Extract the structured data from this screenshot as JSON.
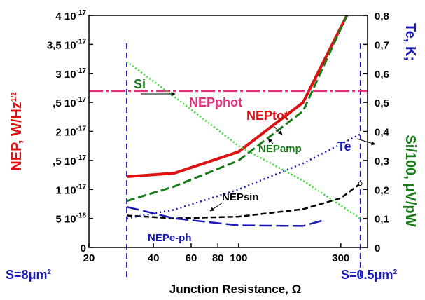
{
  "chart_data": {
    "type": "line",
    "xlabel": "Junction Resistance, Ω",
    "xscale": "log",
    "xlim": [
      20,
      400
    ],
    "x_ticks": [
      {
        "v": 20,
        "label": "20"
      },
      {
        "v": 40,
        "label": "40"
      },
      {
        "v": 60,
        "label": "60"
      },
      {
        "v": 80,
        "label": "80"
      },
      {
        "v": 100,
        "label": "100"
      },
      {
        "v": 300,
        "label": "300"
      }
    ],
    "ylabel_left_text": "NEP, W/Hz",
    "ylabel_left_sup": "1/2",
    "ylim_left": [
      0,
      4e-17
    ],
    "left_ticks": [
      {
        "v": 0,
        "m": "0",
        "e": ""
      },
      {
        "v": 5e-18,
        "m": "5 10",
        "e": "-18"
      },
      {
        "v": 1e-17,
        "m": "1 10",
        "e": "-17"
      },
      {
        "v": 1.5e-17,
        "m": ",5 10",
        "e": "-17"
      },
      {
        "v": 2e-17,
        "m": "2 10",
        "e": "-17"
      },
      {
        "v": 2.5e-17,
        "m": ",5 10",
        "e": "-17"
      },
      {
        "v": 3e-17,
        "m": "3 10",
        "e": "-17"
      },
      {
        "v": 3.5e-17,
        "m": "3,5 10",
        "e": "-17"
      },
      {
        "v": 4e-17,
        "m": "4 10",
        "e": "-17"
      }
    ],
    "ylabel_right_1": "Te, K;",
    "ylabel_right_2": "Si/100, μV/pW",
    "ylim_right": [
      0,
      0.8
    ],
    "right_ticks": [
      "0",
      "0,1",
      "0,2",
      "0,3",
      "0,4",
      "0,5",
      "0,6",
      "0,7",
      "0,8"
    ],
    "colors": {
      "red": "#dd1111",
      "green": "#1a7a1a",
      "lime": "#33dd33",
      "blue": "#1a1ab4",
      "magenta": "#e0307a",
      "black": "#000000"
    },
    "series": [
      {
        "name": "NEPtot",
        "axis": "left",
        "color": "#dd1111",
        "dash": "",
        "width": 4,
        "x": [
          30,
          50,
          100,
          200,
          320
        ],
        "y": [
          1.22e-17,
          1.28e-17,
          1.65e-17,
          2.5e-17,
          4e-17
        ]
      },
      {
        "name": "NEPamp",
        "axis": "left",
        "color": "#1a7a1a",
        "dash": "12,5",
        "width": 3,
        "x": [
          30,
          50,
          100,
          200,
          320
        ],
        "y": [
          8e-18,
          1.05e-17,
          1.5e-17,
          2.35e-17,
          4e-17
        ]
      },
      {
        "name": "NEPphot",
        "axis": "left",
        "color": "#e0307a",
        "dash": "20,4,4,4",
        "width": 3,
        "x": [
          20,
          400
        ],
        "y": [
          2.7e-17,
          2.7e-17
        ]
      },
      {
        "name": "NEPsin",
        "axis": "left",
        "color": "#000000",
        "dash": "8,4",
        "width": 2.5,
        "x": [
          30,
          50,
          100,
          200,
          300,
          370
        ],
        "y": [
          5.5e-18,
          5e-18,
          5.3e-18,
          6.6e-18,
          8.5e-18,
          1.1e-17
        ]
      },
      {
        "name": "NEPe-ph",
        "axis": "left",
        "color": "#1a1ab4",
        "dash": "18,6",
        "width": 2.5,
        "x": [
          30,
          50,
          100,
          200,
          250
        ],
        "y": [
          7e-18,
          5e-18,
          3.8e-18,
          3.7e-18,
          4.7e-18
        ]
      },
      {
        "name": "Te",
        "axis": "right",
        "color": "#1a1ab4",
        "dash": "2,4",
        "width": 2.5,
        "x": [
          30,
          50,
          100,
          200,
          370
        ],
        "y": [
          0.1,
          0.13,
          0.2,
          0.29,
          0.39
        ]
      },
      {
        "name": "Si",
        "axis": "right",
        "color": "#33dd33",
        "dash": "2,3",
        "width": 2.5,
        "x": [
          30,
          50,
          100,
          200,
          370
        ],
        "y": [
          0.64,
          0.52,
          0.35,
          0.23,
          0.1
        ]
      }
    ],
    "vlines": [
      {
        "x": 30,
        "label": "S=8μm",
        "sup": "2",
        "color": "#1a1ab4"
      },
      {
        "x": 370,
        "label": "S=0.5μm",
        "sup": "2",
        "color": "#1a1ab4"
      }
    ],
    "annotations": [
      {
        "series": "NEPtot",
        "text": "NEPtot",
        "color": "#dd1111"
      },
      {
        "series": "NEPamp",
        "text": "NEPamp",
        "color": "#1a7a1a"
      },
      {
        "series": "NEPphot",
        "text": "NEPphot",
        "color": "#e0307a"
      },
      {
        "series": "NEPsin",
        "text": "NEPsin",
        "color": "#000000"
      },
      {
        "series": "NEPe-ph",
        "text": "NEPe-ph",
        "color": "#1a1ab4"
      },
      {
        "series": "Te",
        "text": "Te",
        "color": "#1a1ab4"
      },
      {
        "series": "Si",
        "text": "Si",
        "color": "#1a7a1a"
      }
    ]
  }
}
